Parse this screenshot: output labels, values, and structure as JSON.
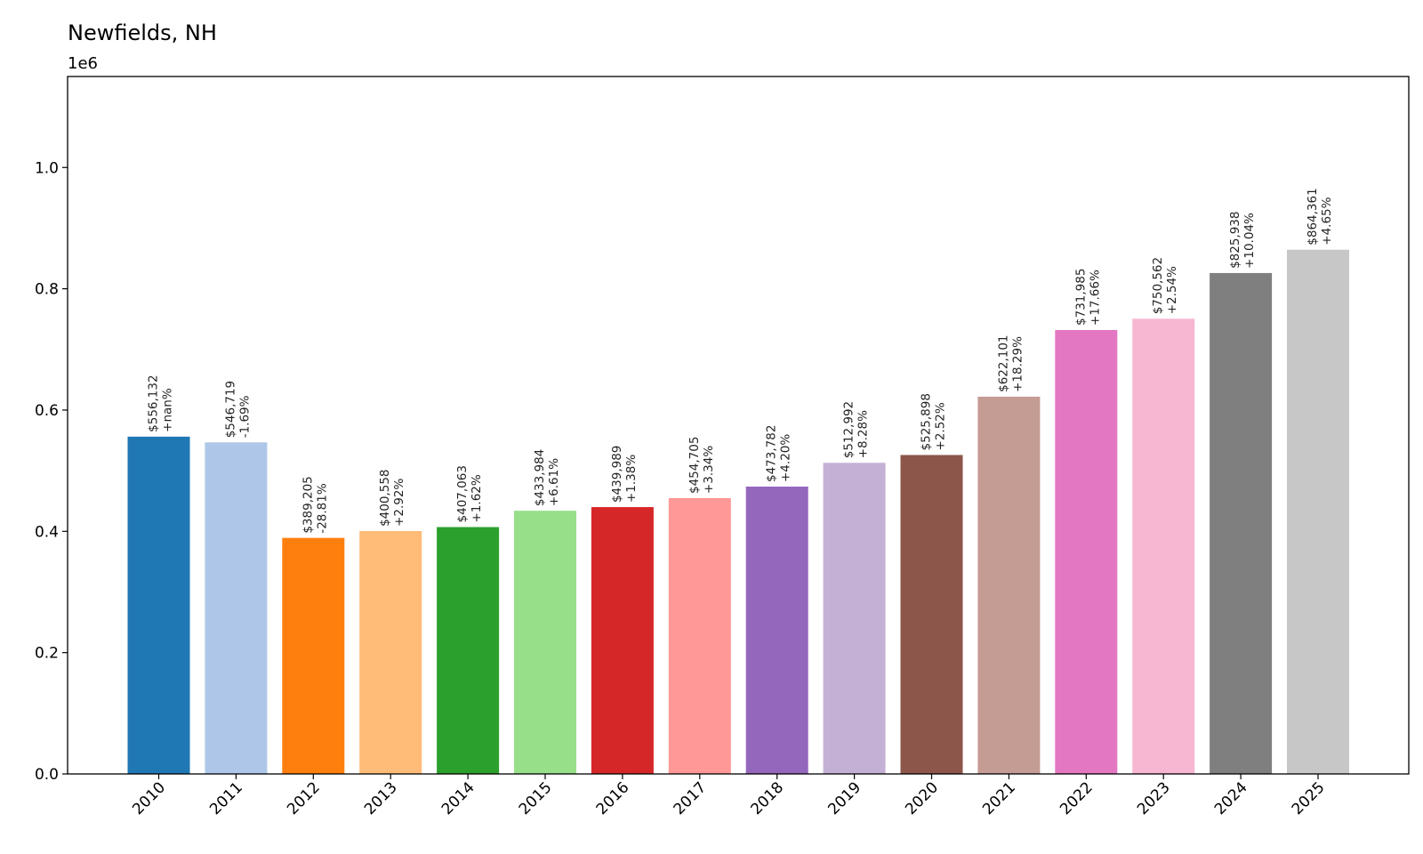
{
  "chart_data": {
    "type": "bar",
    "title": "Newfields, NH",
    "y_offset_label": "1e6",
    "xlabel": "",
    "ylabel": "",
    "ylim": [
      0,
      1150000
    ],
    "yticks": [
      0,
      200000,
      400000,
      600000,
      800000,
      1000000
    ],
    "ytick_labels": [
      "0.0",
      "0.2",
      "0.4",
      "0.6",
      "0.8",
      "1.0"
    ],
    "grid": false,
    "categories": [
      "2010",
      "2011",
      "2012",
      "2013",
      "2014",
      "2015",
      "2016",
      "2017",
      "2018",
      "2019",
      "2020",
      "2021",
      "2022",
      "2023",
      "2024",
      "2025"
    ],
    "values": [
      556132,
      546719,
      389205,
      400558,
      407063,
      433984,
      439989,
      454705,
      473782,
      512992,
      525898,
      622101,
      731985,
      750562,
      825938,
      864361
    ],
    "value_labels": [
      "$556,132",
      "$546,719",
      "$389,205",
      "$400,558",
      "$407,063",
      "$433,984",
      "$439,989",
      "$454,705",
      "$473,782",
      "$512,992",
      "$525,898",
      "$622,101",
      "$731,985",
      "$750,562",
      "$825,938",
      "$864,361"
    ],
    "change_labels": [
      "+nan%",
      "-1.69%",
      "-28.81%",
      "+2.92%",
      "+1.62%",
      "+6.61%",
      "+1.38%",
      "+3.34%",
      "+4.20%",
      "+8.28%",
      "+2.52%",
      "+18.29%",
      "+17.66%",
      "+2.54%",
      "+10.04%",
      "+4.65%"
    ],
    "colors": [
      "#1f77b4",
      "#aec7e8",
      "#ff7f0e",
      "#ffbb78",
      "#2ca02c",
      "#98df8a",
      "#d62728",
      "#ff9896",
      "#9467bd",
      "#c5b0d5",
      "#8c564b",
      "#c49c94",
      "#e377c2",
      "#f7b6d2",
      "#7f7f7f",
      "#c7c7c7"
    ]
  }
}
